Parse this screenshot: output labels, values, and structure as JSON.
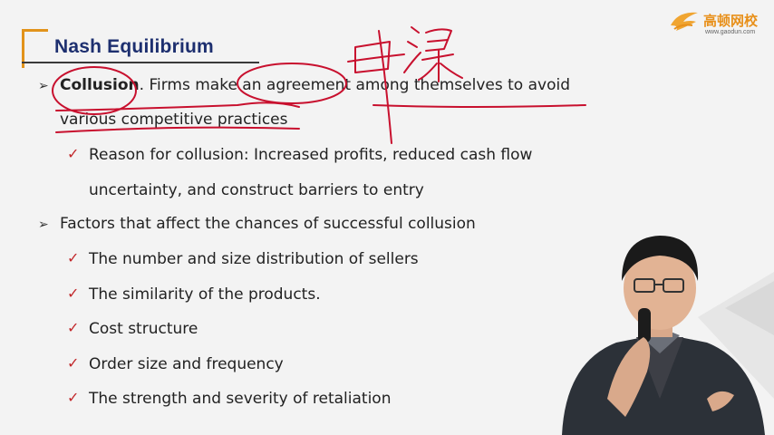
{
  "title": "Nash Equilibrium",
  "logo": {
    "name": "高顿网校",
    "url": "www.gaodun.com"
  },
  "bullets": {
    "b1_term": "Collusion",
    "b1_rest": ". Firms make an agreement among themselves to avoid",
    "b1_line2": "various competitive practices",
    "sub1_line1": "Reason for collusion: Increased profits, reduced cash flow",
    "sub1_line2": "uncertainty, and construct barriers to entry",
    "b2": "Factors that affect the chances of successful collusion",
    "factors": [
      "The number and size distribution of sellers",
      "The similarity of the products.",
      "Cost structure",
      "Order size and frequency",
      "The strength and severity of retaliation"
    ]
  },
  "handwriting": "串谋",
  "colors": {
    "title": "#1d2f6f",
    "accent": "#e2931b",
    "check": "#c2282b",
    "ink": "#c8102e"
  }
}
